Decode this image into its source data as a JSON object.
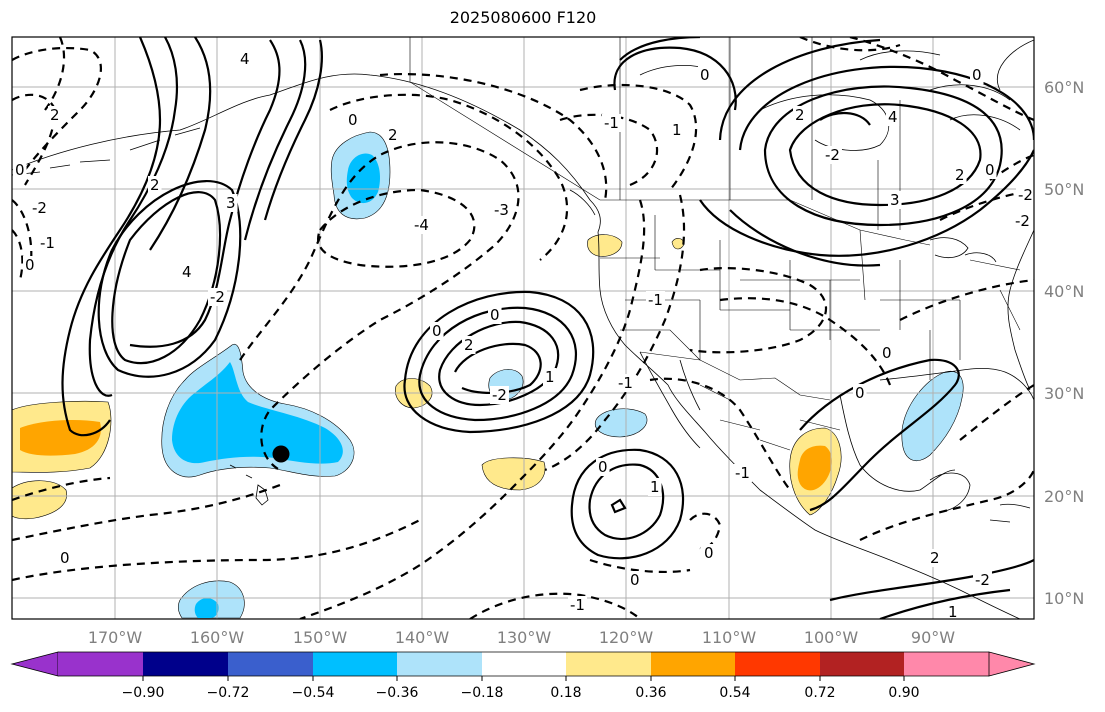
{
  "map": {
    "title": "2025080600 F120",
    "longitude_labels": [
      "170°W",
      "160°W",
      "150°W",
      "140°W",
      "130°W",
      "120°W",
      "110°W",
      "100°W",
      "90°W"
    ],
    "latitude_labels": [
      "60°N",
      "50°N",
      "40°N",
      "30°N",
      "20°N",
      "10°N"
    ],
    "contour_labels": [
      "4",
      "2",
      "0",
      "-2",
      "-1",
      "3",
      "2",
      "4",
      "0",
      "-2",
      "0",
      "2",
      "-4",
      "-3",
      "0",
      "-2",
      "0",
      "2",
      "-1",
      "-1",
      "0",
      "0",
      "1",
      "1",
      "0",
      "-1",
      "-1",
      "0",
      "0",
      "0",
      "1",
      "-2",
      "2",
      "-2",
      "4",
      "3",
      "2",
      "0",
      "0",
      "-2",
      "-2",
      "2",
      "-1",
      "1",
      "0"
    ],
    "marker": "black-dot",
    "grid": true
  },
  "colorbar": {
    "tick_labels": [
      "−0.90",
      "−0.72",
      "−0.54",
      "−0.36",
      "−0.18",
      "0.18",
      "0.36",
      "0.54",
      "0.72",
      "0.90"
    ],
    "colors": [
      "#9932cc",
      "#00008b",
      "#3a5fcd",
      "#00bfff",
      "#aee3fa",
      "#ffffff",
      "#ffe98c",
      "#ffa500",
      "#ff3800",
      "#b22222",
      "#ff88aa"
    ],
    "extend": "both"
  },
  "colors": {
    "fill_light_blue": "#aee3fa",
    "fill_blue": "#00bfff",
    "fill_light_yellow": "#ffe98c",
    "fill_orange": "#ffa500",
    "gridline": "#b0b0b0",
    "contour": "#000000"
  }
}
